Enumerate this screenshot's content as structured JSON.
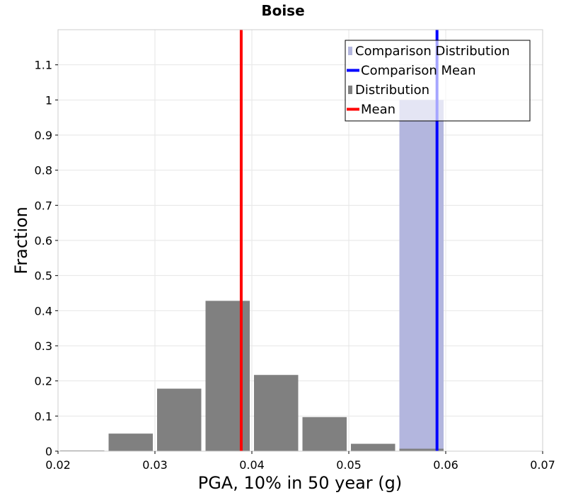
{
  "chart_data": {
    "type": "bar",
    "title": "Boise",
    "xlabel": "PGA, 10% in 50 year (g)",
    "ylabel": "Fraction",
    "xlim": [
      0.02,
      0.07
    ],
    "ylim": [
      0,
      1.2
    ],
    "x_ticks": [
      "0.02",
      "0.03",
      "0.04",
      "0.05",
      "0.06",
      "0.07"
    ],
    "y_ticks": [
      "0",
      "0.1",
      "0.2",
      "0.3",
      "0.4",
      "0.5",
      "0.6",
      "0.7",
      "0.8",
      "0.9",
      "1",
      "1.1"
    ],
    "grid": true,
    "legend_position": "top-right",
    "bin_width": 0.005,
    "series": [
      {
        "name": "Distribution",
        "kind": "histogram",
        "color": "#808080",
        "bin_starts": [
          0.02,
          0.025,
          0.03,
          0.035,
          0.04,
          0.045,
          0.05,
          0.055,
          0.06
        ],
        "values": [
          0.002,
          0.05,
          0.178,
          0.428,
          0.217,
          0.097,
          0.021,
          0.007,
          0.001
        ]
      },
      {
        "name": "Comparison Distribution",
        "kind": "histogram",
        "color": "#b3b6de",
        "bin_starts": [
          0.055
        ],
        "values": [
          1.0
        ]
      },
      {
        "name": "Mean",
        "kind": "vline",
        "color": "#ff0000",
        "x": 0.0389
      },
      {
        "name": "Comparison Mean",
        "kind": "vline",
        "color": "#0000ff",
        "x": 0.0591
      }
    ],
    "legend": [
      {
        "label": "Comparison Distribution",
        "color": "#b3b6de",
        "symbol": "box"
      },
      {
        "label": "Comparison Mean",
        "color": "#0000ff",
        "symbol": "line"
      },
      {
        "label": "Distribution",
        "color": "#808080",
        "symbol": "box"
      },
      {
        "label": "Mean",
        "color": "#ff0000",
        "symbol": "line"
      }
    ]
  }
}
